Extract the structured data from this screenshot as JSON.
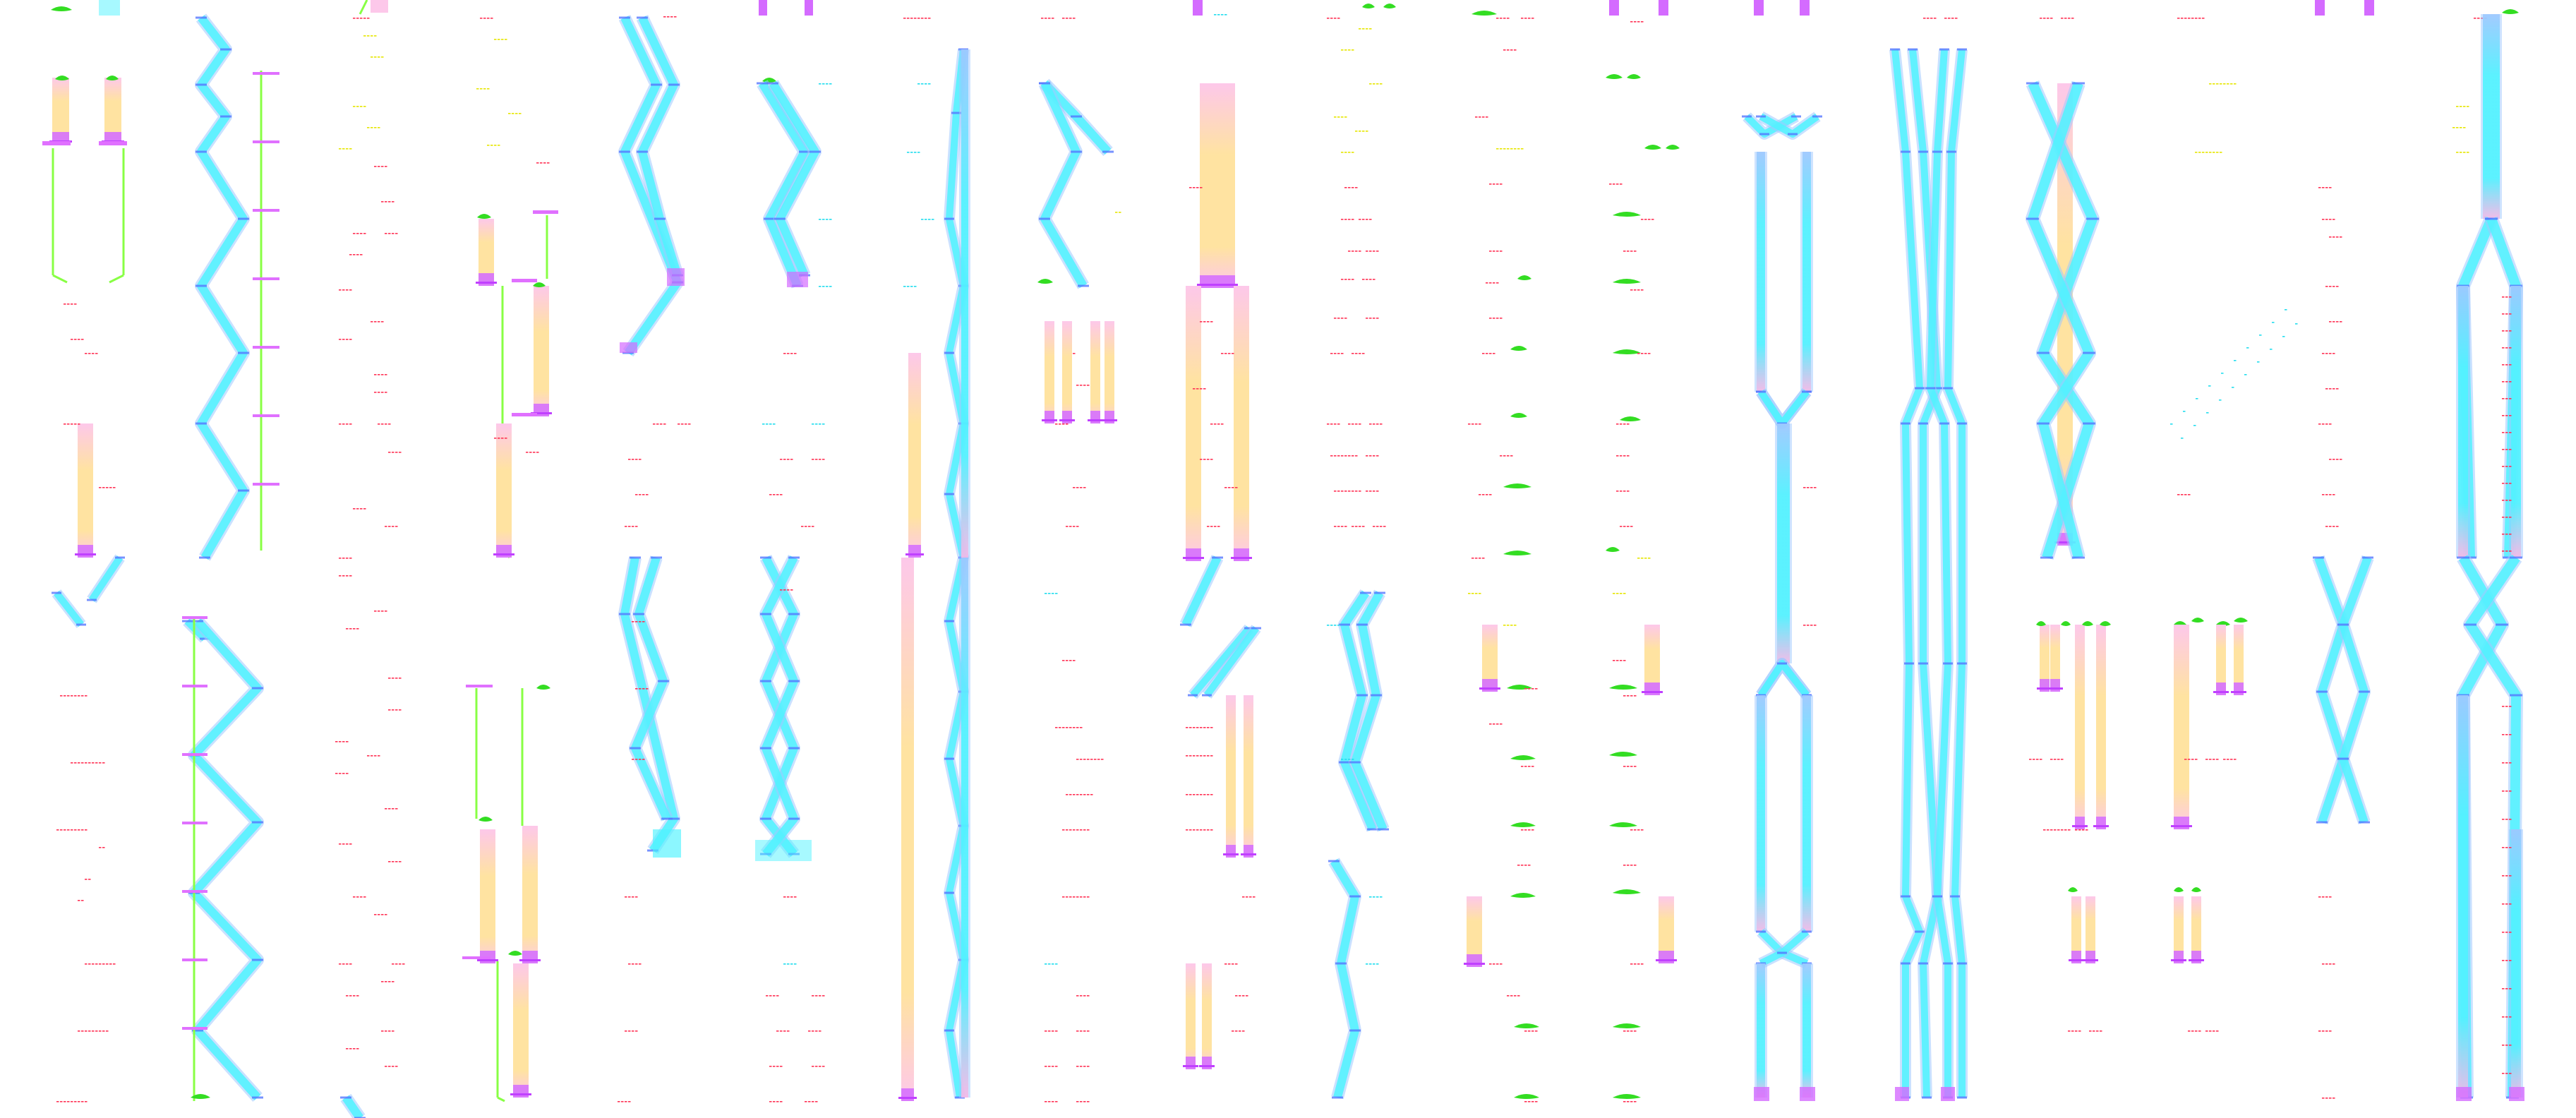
{
  "colors": {
    "background": "#ffffff",
    "track_cyan": "#4ff3ff",
    "track_blue": "#9ec8ff",
    "track_pink": "#f7b8e6",
    "block_orange": "#ffe3a1",
    "block_pink": "#fdc8ea",
    "cap_magenta": "#d46bff",
    "marker_green": "#33dd22",
    "label_red": "#ff3355",
    "label_yellow": "#e6e600",
    "label_cyan": "#22ddee"
  },
  "legend_texts": []
}
